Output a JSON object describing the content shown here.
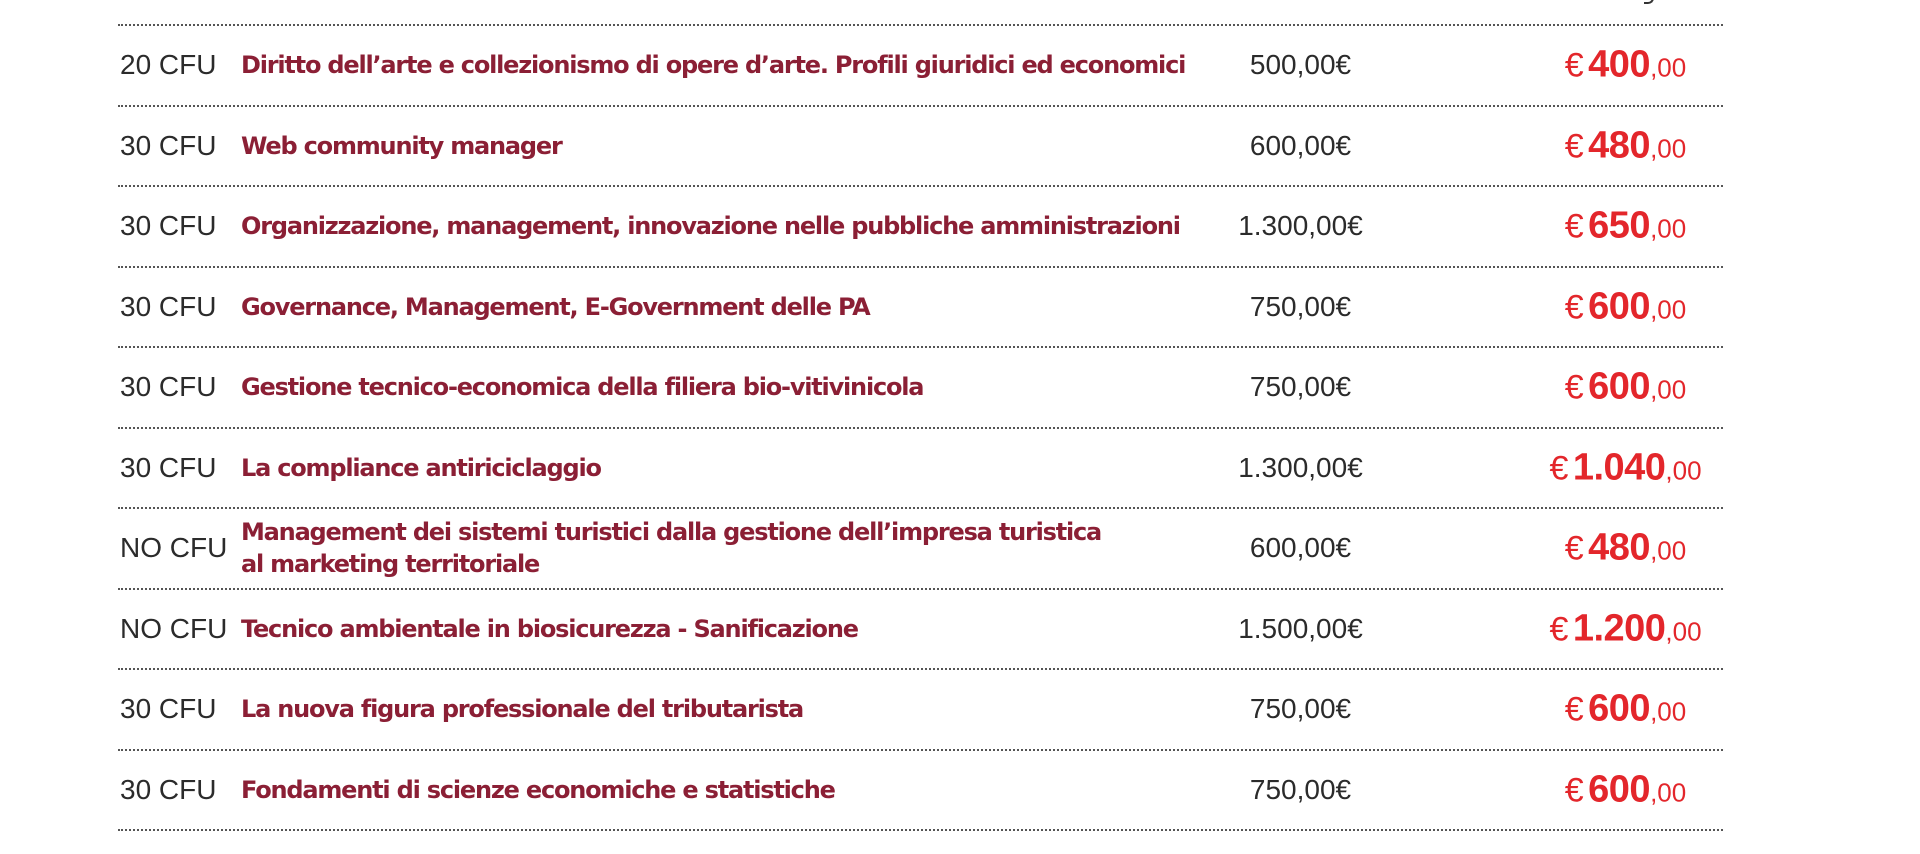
{
  "colors": {
    "title": "#8b1f35",
    "discount_price": "#e3262b",
    "text": "#2b2b2b"
  },
  "courses": [
    {
      "cfu": "20 CFU",
      "title_lines": [
        "Diritto dell’arte e collezionismo di opere d’arte. Profili giuridici ed economici"
      ],
      "full_price": "500,00€",
      "currency": "€",
      "discount_main": "400",
      "discount_cents": ",00"
    },
    {
      "cfu": "30 CFU",
      "title_lines": [
        "Web community manager"
      ],
      "full_price": "600,00€",
      "currency": "€",
      "discount_main": "480",
      "discount_cents": ",00"
    },
    {
      "cfu": "30 CFU",
      "title_lines": [
        "Organizzazione, management, innovazione nelle pubbliche amministrazioni"
      ],
      "full_price": "1.300,00€",
      "currency": "€",
      "discount_main": "650",
      "discount_cents": ",00"
    },
    {
      "cfu": "30 CFU",
      "title_lines": [
        "Governance, Management, E-Government delle PA"
      ],
      "full_price": "750,00€",
      "currency": "€",
      "discount_main": "600",
      "discount_cents": ",00"
    },
    {
      "cfu": "30 CFU",
      "title_lines": [
        "Gestione tecnico-economica della filiera bio-vitivinicola"
      ],
      "full_price": "750,00€",
      "currency": "€",
      "discount_main": "600",
      "discount_cents": ",00"
    },
    {
      "cfu": "30 CFU",
      "title_lines": [
        "La compliance antiriciclaggio"
      ],
      "full_price": "1.300,00€",
      "currency": "€",
      "discount_main": "1.040",
      "discount_cents": ",00"
    },
    {
      "cfu": "NO CFU",
      "title_lines": [
        "Management dei sistemi turistici dalla gestione dell’impresa turistica",
        "al marketing territoriale"
      ],
      "full_price": "600,00€",
      "currency": "€",
      "discount_main": "480",
      "discount_cents": ",00"
    },
    {
      "cfu": "NO CFU",
      "title_lines": [
        "Tecnico ambientale in biosicurezza - Sanificazione"
      ],
      "full_price": "1.500,00€",
      "currency": "€",
      "discount_main": "1.200",
      "discount_cents": ",00"
    },
    {
      "cfu": "30 CFU",
      "title_lines": [
        "La nuova figura professionale del tributarista"
      ],
      "full_price": "750,00€",
      "currency": "€",
      "discount_main": "600",
      "discount_cents": ",00"
    },
    {
      "cfu": "30 CFU",
      "title_lines": [
        "Fondamenti di scienze economiche e statistiche"
      ],
      "full_price": "750,00€",
      "currency": "€",
      "discount_main": "600",
      "discount_cents": ",00"
    }
  ]
}
